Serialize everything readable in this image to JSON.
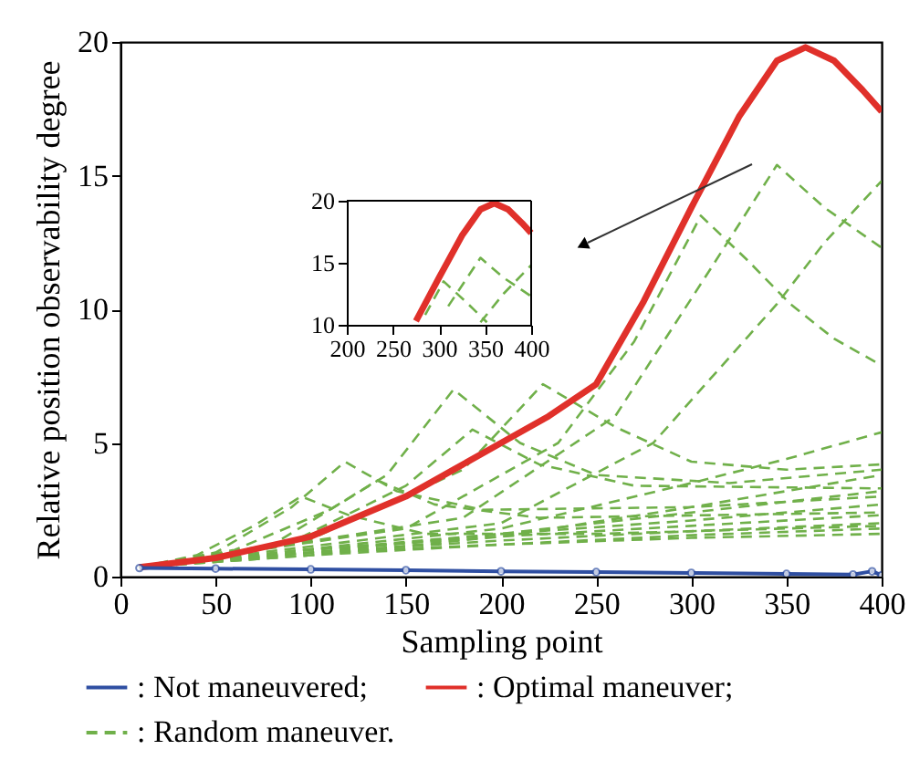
{
  "chart_data": [
    {
      "type": "line",
      "xlabel": "Sampling point",
      "ylabel": "Relative position observability degree",
      "xlim": [
        0,
        400
      ],
      "ylim": [
        0,
        20
      ],
      "xticks": [
        0,
        50,
        100,
        150,
        200,
        250,
        300,
        350,
        400
      ],
      "yticks": [
        0,
        5,
        10,
        15,
        20
      ],
      "grid": false,
      "legend": "bottom",
      "series": [
        {
          "name": ": Not maneuvered;",
          "color": "#2f4fa2",
          "line_style": "solid",
          "marker": "circle",
          "x": [
            10,
            50,
            100,
            150,
            200,
            250,
            300,
            350,
            385,
            395,
            400
          ],
          "values": [
            0.32,
            0.3,
            0.27,
            0.24,
            0.2,
            0.17,
            0.14,
            0.1,
            0.08,
            0.2,
            0.05
          ]
        },
        {
          "name": ": Optimal maneuver;",
          "color": "#e0302a",
          "line_style": "solid",
          "x": [
            10,
            50,
            100,
            150,
            200,
            225,
            250,
            275,
            300,
            325,
            345,
            360,
            375,
            390,
            400
          ],
          "values": [
            0.35,
            0.7,
            1.5,
            3.0,
            5.0,
            6.0,
            7.2,
            10.3,
            13.8,
            17.2,
            19.3,
            19.8,
            19.3,
            18.2,
            17.4
          ]
        },
        {
          "name": ": Random maneuver.",
          "color": "#70b04a",
          "line_style": "dashed",
          "x": [
            10,
            40,
            70,
            95,
            120,
            160,
            250,
            400
          ],
          "values": [
            0.35,
            0.8,
            1.9,
            3.0,
            2.3,
            1.6,
            1.6,
            1.9
          ]
        },
        {
          "color": "#70b04a",
          "line_style": "dashed",
          "x": [
            10,
            50,
            90,
            118,
            145,
            190,
            300,
            400
          ],
          "values": [
            0.35,
            0.9,
            2.6,
            4.3,
            3.2,
            2.5,
            2.6,
            3.0
          ]
        },
        {
          "color": "#70b04a",
          "line_style": "dashed",
          "x": [
            10,
            60,
            110,
            135,
            165,
            220,
            400
          ],
          "values": [
            0.35,
            1.0,
            2.5,
            3.6,
            2.7,
            2.2,
            2.4
          ]
        },
        {
          "color": "#70b04a",
          "line_style": "dashed",
          "x": [
            10,
            80,
            140,
            175,
            210,
            250,
            320,
            400
          ],
          "values": [
            0.35,
            1.2,
            3.8,
            7.0,
            5.0,
            3.8,
            3.5,
            4.0
          ]
        },
        {
          "color": "#70b04a",
          "line_style": "dashed",
          "x": [
            10,
            90,
            150,
            185,
            220,
            270,
            400
          ],
          "values": [
            0.35,
            1.3,
            3.4,
            5.5,
            4.2,
            3.4,
            3.3
          ]
        },
        {
          "color": "#70b04a",
          "line_style": "dashed",
          "x": [
            10,
            100,
            180,
            222,
            260,
            300,
            350,
            400
          ],
          "values": [
            0.35,
            1.4,
            4.0,
            7.2,
            5.6,
            4.3,
            4.0,
            4.2
          ]
        },
        {
          "color": "#70b04a",
          "line_style": "dashed",
          "x": [
            10,
            150,
            230,
            270,
            285,
            305,
            330,
            352,
            375,
            400
          ],
          "values": [
            0.35,
            1.8,
            5.0,
            8.8,
            10.8,
            13.5,
            11.8,
            10.2,
            8.9,
            7.9
          ]
        },
        {
          "color": "#70b04a",
          "line_style": "dashed",
          "x": [
            10,
            180,
            260,
            310,
            345,
            370,
            400
          ],
          "values": [
            0.35,
            2.2,
            6.0,
            11.5,
            15.4,
            13.8,
            12.3
          ]
        },
        {
          "color": "#70b04a",
          "line_style": "dashed",
          "x": [
            10,
            200,
            280,
            330,
            345,
            370,
            400
          ],
          "values": [
            0.35,
            2.0,
            5.0,
            9.0,
            10.2,
            12.5,
            14.8
          ]
        },
        {
          "color": "#70b04a",
          "line_style": "dashed",
          "x": [
            10,
            200,
            300,
            350,
            400
          ],
          "values": [
            0.35,
            1.8,
            3.5,
            4.4,
            5.4
          ]
        },
        {
          "color": "#70b04a",
          "line_style": "dashed",
          "x": [
            10,
            100,
            200,
            300,
            400
          ],
          "values": [
            0.35,
            0.9,
            1.2,
            1.45,
            1.6
          ]
        },
        {
          "color": "#70b04a",
          "line_style": "dashed",
          "x": [
            10,
            100,
            200,
            300,
            400
          ],
          "values": [
            0.35,
            0.8,
            1.2,
            1.55,
            1.8
          ]
        },
        {
          "color": "#70b04a",
          "line_style": "dashed",
          "x": [
            10,
            100,
            200,
            300,
            400
          ],
          "values": [
            0.35,
            0.9,
            1.35,
            1.7,
            2.0
          ]
        },
        {
          "color": "#70b04a",
          "line_style": "dashed",
          "x": [
            10,
            100,
            200,
            300,
            400
          ],
          "values": [
            0.35,
            1.0,
            1.5,
            1.9,
            2.3
          ]
        },
        {
          "color": "#70b04a",
          "line_style": "dashed",
          "x": [
            10,
            100,
            200,
            300,
            400
          ],
          "values": [
            0.35,
            1.0,
            1.6,
            2.1,
            2.7
          ]
        },
        {
          "color": "#70b04a",
          "line_style": "dashed",
          "x": [
            10,
            100,
            200,
            300,
            400
          ],
          "values": [
            0.35,
            0.9,
            1.6,
            2.4,
            3.2
          ]
        },
        {
          "color": "#70b04a",
          "line_style": "dashed",
          "x": [
            10,
            100,
            200,
            300,
            400
          ],
          "values": [
            0.35,
            0.8,
            1.5,
            2.6,
            3.8
          ]
        }
      ]
    },
    {
      "type": "line",
      "xlim": [
        200,
        400
      ],
      "ylim": [
        10,
        20
      ],
      "xticks": [
        200,
        250,
        300,
        350,
        400
      ],
      "yticks": [
        10,
        15,
        20
      ],
      "grid": false,
      "series": [
        {
          "color": "#e0302a",
          "line_style": "solid",
          "x": [
            275,
            300,
            325,
            345,
            360,
            375,
            390,
            400
          ],
          "values": [
            10.3,
            13.8,
            17.2,
            19.3,
            19.8,
            19.3,
            18.2,
            17.4
          ]
        },
        {
          "color": "#70b04a",
          "line_style": "dashed",
          "x": [
            285,
            305,
            330,
            352
          ],
          "values": [
            10.8,
            13.5,
            11.8,
            10.2
          ]
        },
        {
          "color": "#70b04a",
          "line_style": "dashed",
          "x": [
            310,
            345,
            370,
            400
          ],
          "values": [
            11.5,
            15.4,
            13.8,
            12.3
          ]
        },
        {
          "color": "#70b04a",
          "line_style": "dashed",
          "x": [
            345,
            370,
            400
          ],
          "values": [
            10.2,
            12.5,
            14.8
          ]
        }
      ]
    }
  ]
}
